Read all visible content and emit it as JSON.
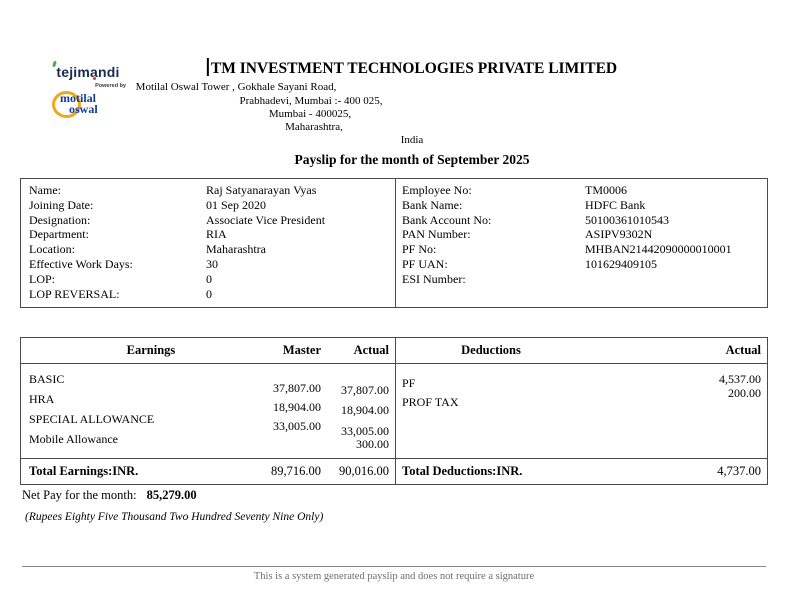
{
  "logo": {
    "brand": "tejimandi",
    "powered_by": "Powered by",
    "sub_brand_line1": "motilal",
    "sub_brand_line2": "oswal",
    "colors": {
      "brand_navy": "#1b2b4d",
      "accent_green": "#4caf3e",
      "accent_red": "#e03c31",
      "sub_blue": "#163a8f",
      "sub_yellow": "#f0a71c"
    }
  },
  "header": {
    "company_name": "TM INVESTMENT TECHNOLOGIES PRIVATE LIMITED",
    "address_lines": [
      "Motilal Oswal Tower , Gokhale Sayani Road,",
      "Prabhadevi, Mumbai :- 400 025,",
      "Mumbai - 400025,",
      "Maharashtra,",
      "India"
    ],
    "payslip_title": "Payslip for the month of September 2025"
  },
  "employee_info": {
    "left": [
      {
        "label": "Name:",
        "value": "Raj Satyanarayan Vyas"
      },
      {
        "label": "Joining Date:",
        "value": "01 Sep 2020"
      },
      {
        "label": "Designation:",
        "value": "Associate Vice President"
      },
      {
        "label": "Department:",
        "value": "RIA"
      },
      {
        "label": "Location:",
        "value": "Maharashtra"
      },
      {
        "label": "Effective Work Days:",
        "value": "30"
      },
      {
        "label": "LOP:",
        "value": "0"
      },
      {
        "label": "LOP REVERSAL:",
        "value": "0"
      }
    ],
    "right": [
      {
        "label": "Employee No:",
        "value": "TM0006"
      },
      {
        "label": "Bank Name:",
        "value": "HDFC Bank"
      },
      {
        "label": "Bank Account No:",
        "value": "50100361010543"
      },
      {
        "label": "PAN Number:",
        "value": "ASIPV9302N"
      },
      {
        "label": "PF No:",
        "value": "MHBAN21442090000010001"
      },
      {
        "label": "PF UAN:",
        "value": "101629409105"
      },
      {
        "label": "ESI Number:",
        "value": ""
      }
    ]
  },
  "earnings_table": {
    "headers": {
      "earnings": "Earnings",
      "master": "Master",
      "actual": "Actual"
    },
    "rows": [
      {
        "label": "BASIC",
        "master": "37,807.00",
        "actual": "37,807.00"
      },
      {
        "label": "HRA",
        "master": "18,904.00",
        "actual": "18,904.00"
      },
      {
        "label": "SPECIAL ALLOWANCE",
        "master": "33,005.00",
        "actual": "33,005.00"
      },
      {
        "label": "Mobile Allowance",
        "master": "",
        "actual": "300.00"
      }
    ],
    "total": {
      "label": "Total Earnings:INR.",
      "master": "89,716.00",
      "actual": "90,016.00"
    }
  },
  "deductions_table": {
    "headers": {
      "deductions": "Deductions",
      "actual": "Actual"
    },
    "rows": [
      {
        "label": "PF",
        "actual": "4,537.00"
      },
      {
        "label": "PROF TAX",
        "actual": "200.00"
      }
    ],
    "total": {
      "label": "Total Deductions:INR.",
      "actual": "4,737.00"
    }
  },
  "net_pay": {
    "label": "Net Pay for the month:",
    "value": "85,279.00",
    "in_words": "(Rupees Eighty Five Thousand Two Hundred Seventy Nine Only)"
  },
  "footer": {
    "note": "This is a system generated payslip and does not require a signature"
  }
}
